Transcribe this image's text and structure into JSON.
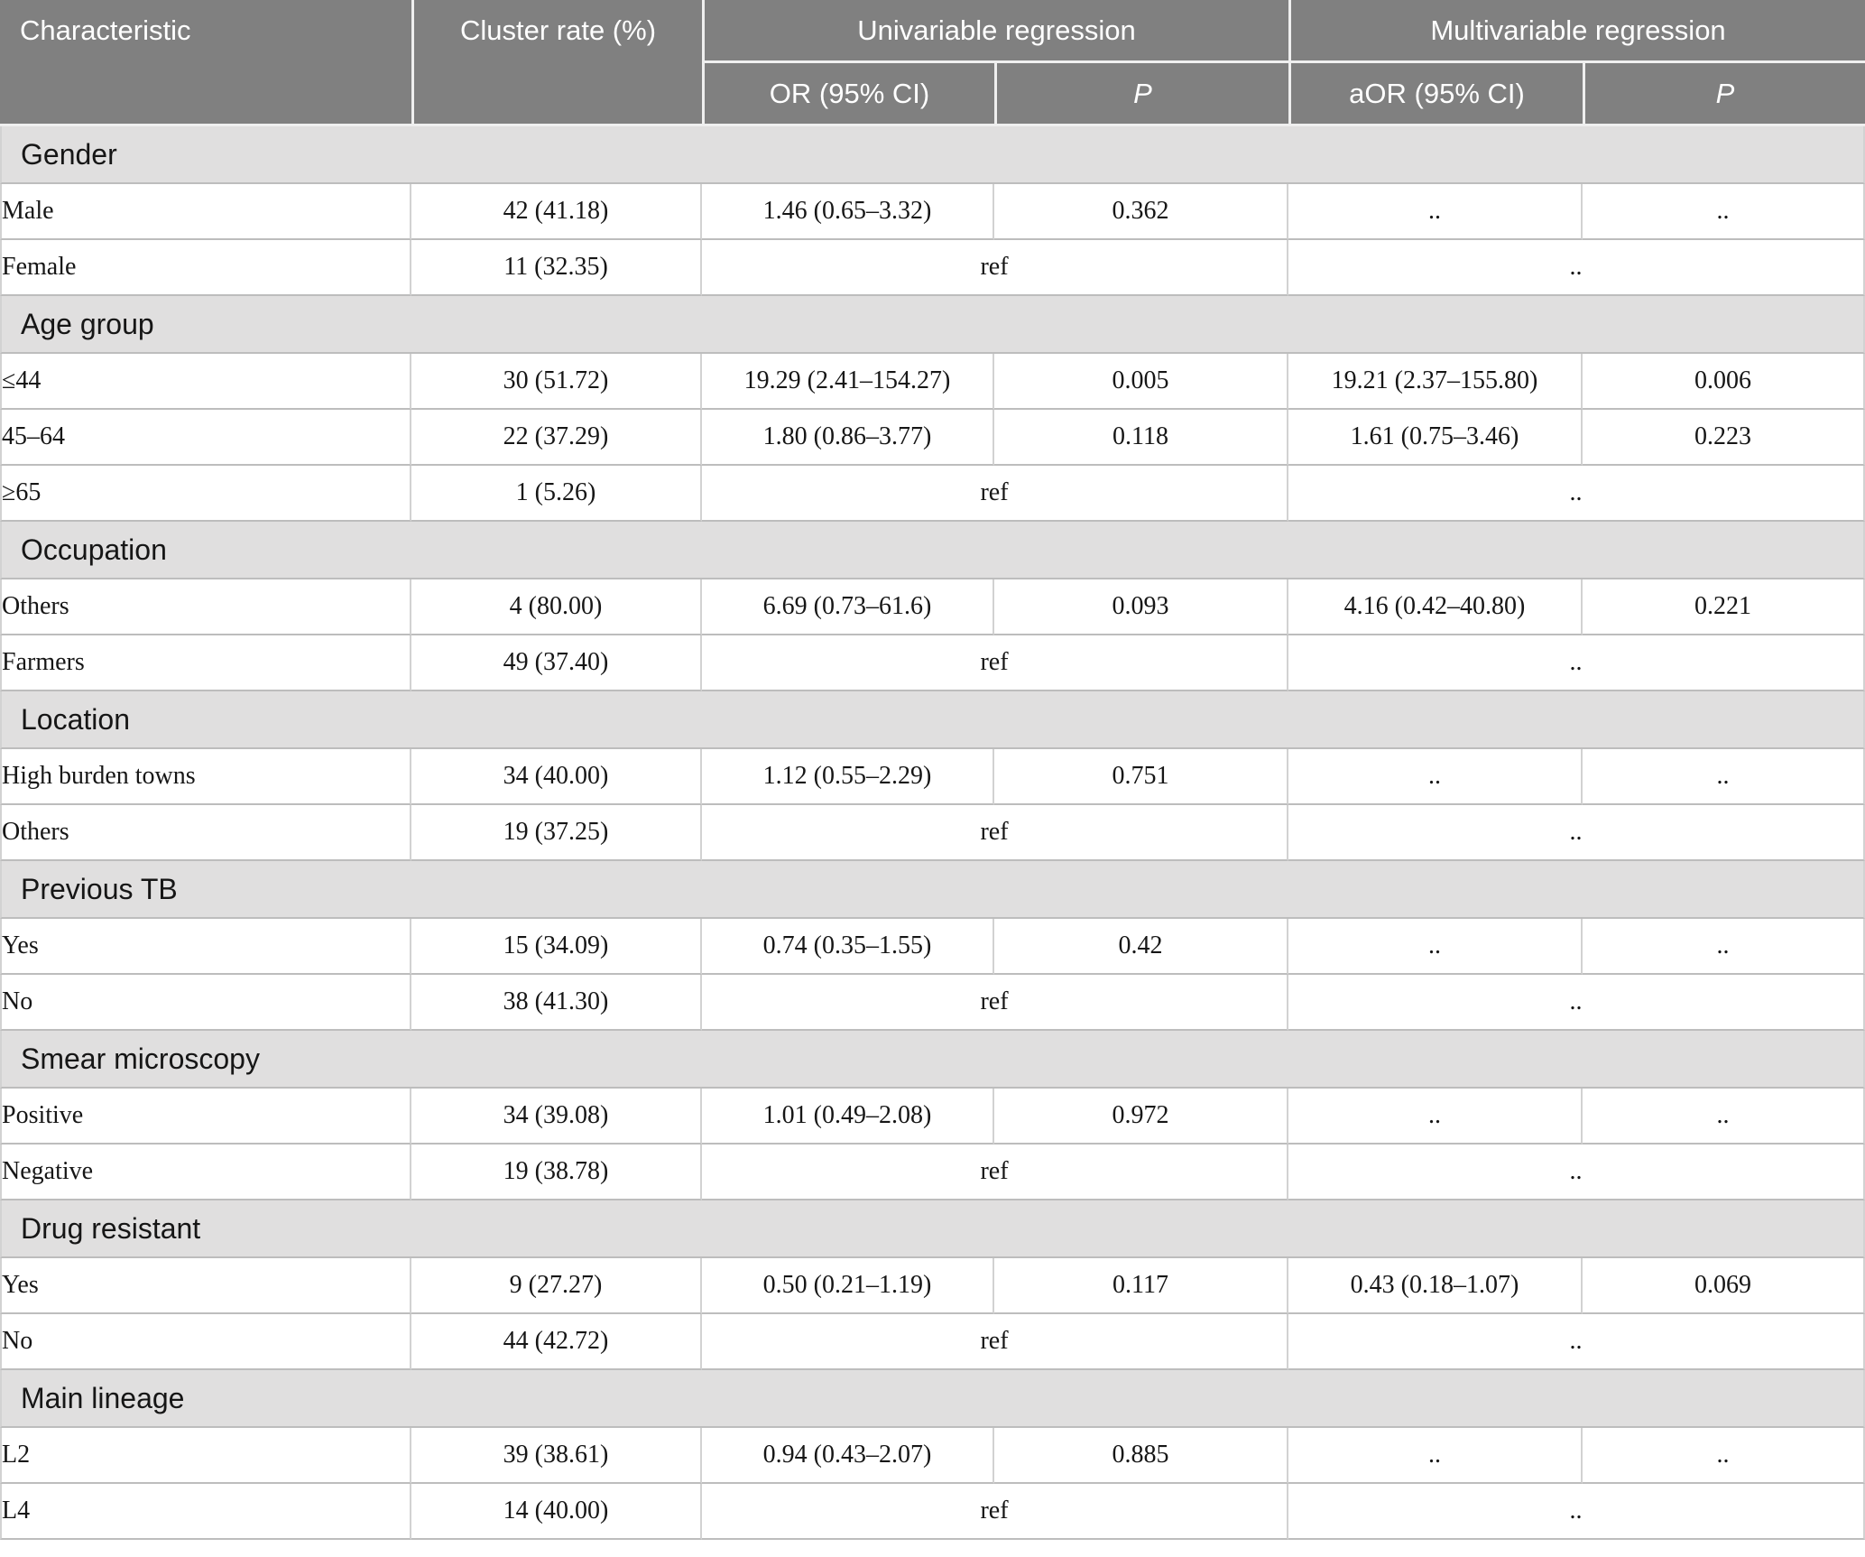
{
  "colors": {
    "header_bg": "#808080",
    "section_bg": "#e0dfdf",
    "row_border": "#bdbdbd",
    "col_border": "#d2d2d2",
    "header_divider": "#efefef",
    "header_text": "#ffffff",
    "text_dark": "#161616"
  },
  "table": {
    "header": {
      "characteristic": "Characteristic",
      "cluster_rate": "Cluster rate (%)",
      "univariable_group": "Univariable regression",
      "multivariable_group": "Multivariable regression",
      "or_ci": "OR (95% CI)",
      "p_uni": "P",
      "aor_ci": "aOR (95% CI)",
      "p_multi": "P"
    },
    "sections": [
      {
        "title": "Gender",
        "rows": [
          {
            "cells": [
              {
                "t": "Male"
              },
              {
                "t": "42 (41.18)"
              },
              {
                "t": "1.46 (0.65–3.32)"
              },
              {
                "t": "0.362"
              },
              {
                "t": ".."
              },
              {
                "t": ".."
              }
            ]
          },
          {
            "cells": [
              {
                "t": "Female"
              },
              {
                "t": "11 (32.35)"
              },
              {
                "t": "ref",
                "span": 2
              },
              {
                "t": "..",
                "span": 2
              }
            ]
          }
        ]
      },
      {
        "title": "Age group",
        "rows": [
          {
            "cells": [
              {
                "t": "≤44"
              },
              {
                "t": "30 (51.72)"
              },
              {
                "t": "19.29 (2.41–154.27)"
              },
              {
                "t": "0.005"
              },
              {
                "t": "19.21 (2.37–155.80)"
              },
              {
                "t": "0.006"
              }
            ]
          },
          {
            "cells": [
              {
                "t": "45–64"
              },
              {
                "t": "22 (37.29)"
              },
              {
                "t": "1.80 (0.86–3.77)"
              },
              {
                "t": "0.118"
              },
              {
                "t": "1.61 (0.75–3.46)"
              },
              {
                "t": "0.223"
              }
            ]
          },
          {
            "cells": [
              {
                "t": "≥65"
              },
              {
                "t": "1 (5.26)"
              },
              {
                "t": "ref",
                "span": 2
              },
              {
                "t": "..",
                "span": 2
              }
            ]
          }
        ]
      },
      {
        "title": "Occupation",
        "rows": [
          {
            "cells": [
              {
                "t": "Others"
              },
              {
                "t": "4 (80.00)"
              },
              {
                "t": "6.69 (0.73–61.6)"
              },
              {
                "t": "0.093"
              },
              {
                "t": "4.16 (0.42–40.80)"
              },
              {
                "t": "0.221"
              }
            ]
          },
          {
            "cells": [
              {
                "t": "Farmers"
              },
              {
                "t": "49 (37.40)"
              },
              {
                "t": "ref",
                "span": 2
              },
              {
                "t": "..",
                "span": 2
              }
            ]
          }
        ]
      },
      {
        "title": "Location",
        "rows": [
          {
            "cells": [
              {
                "t": "High burden towns"
              },
              {
                "t": "34 (40.00)"
              },
              {
                "t": "1.12 (0.55–2.29)"
              },
              {
                "t": "0.751"
              },
              {
                "t": ".."
              },
              {
                "t": ".."
              }
            ]
          },
          {
            "cells": [
              {
                "t": "Others"
              },
              {
                "t": "19 (37.25)"
              },
              {
                "t": "ref",
                "span": 2
              },
              {
                "t": "..",
                "span": 2
              }
            ]
          }
        ]
      },
      {
        "title": "Previous TB",
        "rows": [
          {
            "cells": [
              {
                "t": "Yes"
              },
              {
                "t": "15 (34.09)"
              },
              {
                "t": "0.74 (0.35–1.55)"
              },
              {
                "t": "0.42"
              },
              {
                "t": ".."
              },
              {
                "t": ".."
              }
            ]
          },
          {
            "cells": [
              {
                "t": "No"
              },
              {
                "t": "38 (41.30)"
              },
              {
                "t": "ref",
                "span": 2
              },
              {
                "t": "..",
                "span": 2
              }
            ]
          }
        ]
      },
      {
        "title": "Smear microscopy",
        "rows": [
          {
            "cells": [
              {
                "t": "Positive"
              },
              {
                "t": "34 (39.08)"
              },
              {
                "t": "1.01 (0.49–2.08)"
              },
              {
                "t": "0.972"
              },
              {
                "t": ".."
              },
              {
                "t": ".."
              }
            ]
          },
          {
            "cells": [
              {
                "t": "Negative"
              },
              {
                "t": "19 (38.78)"
              },
              {
                "t": "ref",
                "span": 2
              },
              {
                "t": "..",
                "span": 2
              }
            ]
          }
        ]
      },
      {
        "title": "Drug resistant",
        "rows": [
          {
            "cells": [
              {
                "t": "Yes"
              },
              {
                "t": "9 (27.27)"
              },
              {
                "t": "0.50 (0.21–1.19)"
              },
              {
                "t": "0.117"
              },
              {
                "t": "0.43 (0.18–1.07)"
              },
              {
                "t": "0.069"
              }
            ]
          },
          {
            "cells": [
              {
                "t": "No"
              },
              {
                "t": "44 (42.72)"
              },
              {
                "t": "ref",
                "span": 2
              },
              {
                "t": "..",
                "span": 2
              }
            ]
          }
        ]
      },
      {
        "title": "Main lineage",
        "rows": [
          {
            "cells": [
              {
                "t": "L2"
              },
              {
                "t": "39 (38.61)"
              },
              {
                "t": "0.94 (0.43–2.07)"
              },
              {
                "t": "0.885"
              },
              {
                "t": ".."
              },
              {
                "t": ".."
              }
            ]
          },
          {
            "cells": [
              {
                "t": "L4"
              },
              {
                "t": "14 (40.00)"
              },
              {
                "t": "ref",
                "span": 2
              },
              {
                "t": "..",
                "span": 2
              }
            ]
          }
        ]
      }
    ]
  }
}
